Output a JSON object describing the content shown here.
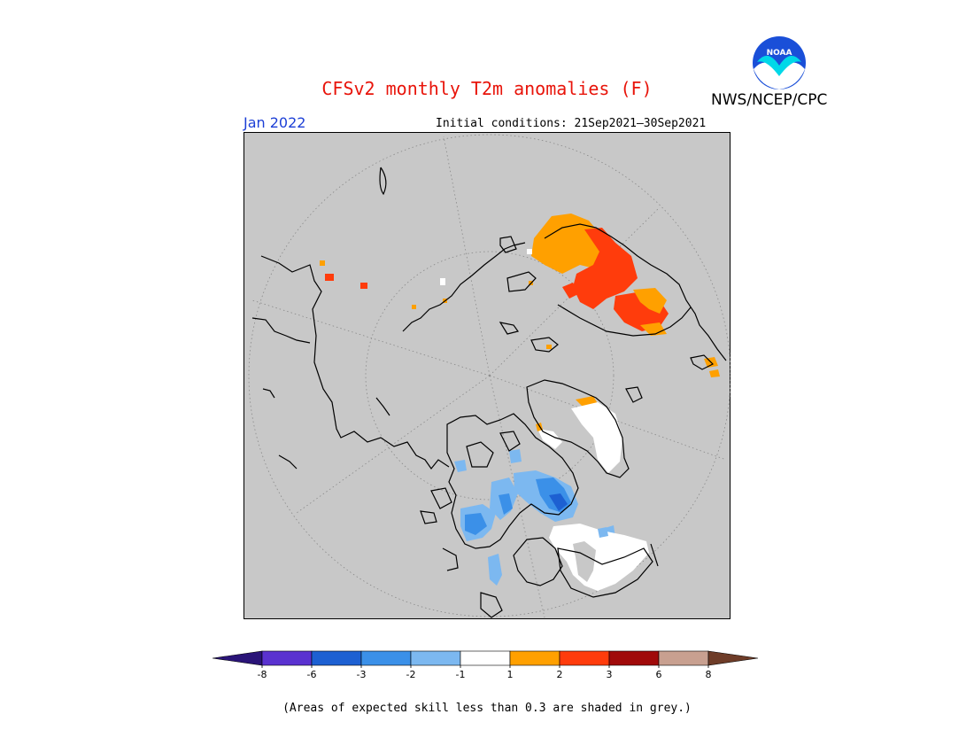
{
  "title": "CFSv2 monthly T2m anomalies (F)",
  "organization": "NWS/NCEP/CPC",
  "logo_text": "NOAA",
  "month_label": "Jan 2022",
  "initial_conditions": "Initial conditions: 21Sep2021—30Sep2021",
  "footnote": "(Areas of expected skill less than 0.3 are shaded in grey.)",
  "colors": {
    "skill_grey": "#c8c8c8",
    "title_red": "#e8140a",
    "month_blue": "#1c3fd6"
  },
  "legend": {
    "ticks": [
      "-8",
      "-6",
      "-3",
      "-2",
      "-1",
      "1",
      "2",
      "3",
      "6",
      "8"
    ],
    "bins": [
      {
        "range": "< -8",
        "color": "#2a1478"
      },
      {
        "range": "-8 to -6",
        "color": "#5a32d0"
      },
      {
        "range": "-6 to -3",
        "color": "#1d60d2"
      },
      {
        "range": "-3 to -2",
        "color": "#3b90e8"
      },
      {
        "range": "-2 to -1",
        "color": "#7cb8f0"
      },
      {
        "range": "-1 to 1",
        "color": "#ffffff"
      },
      {
        "range": "1 to 2",
        "color": "#ffa000"
      },
      {
        "range": "2 to 3",
        "color": "#ff3c0c"
      },
      {
        "range": "3 to 6",
        "color": "#a00a0a"
      },
      {
        "range": "6 to 8",
        "color": "#c8a090"
      },
      {
        "range": "> 8",
        "color": "#6e3c28"
      }
    ]
  }
}
